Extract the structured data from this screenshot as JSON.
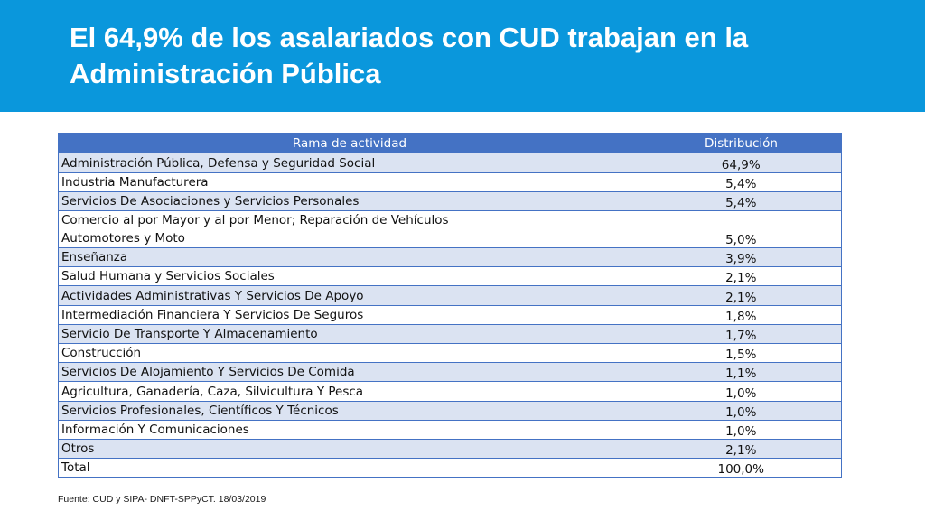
{
  "slide": {
    "title": "El 64,9% de los asalariados con CUD trabajan en la Administración Pública",
    "source": "Fuente: CUD y SIPA- DNFT-SPPyCT. 18/03/2019"
  },
  "table": {
    "headers": [
      "Rama de actividad",
      "Distribución"
    ],
    "rows": [
      {
        "rama": "Administración Pública, Defensa y Seguridad Social",
        "dist": "64,9%"
      },
      {
        "rama": "Industria Manufacturera",
        "dist": "5,4%"
      },
      {
        "rama": " Servicios De Asociaciones y Servicios Personales",
        "dist": "5,4%"
      },
      {
        "rama": "Comercio al por Mayor y al por Menor; Reparación de Vehículos",
        "rama2": "Automotores y Moto",
        "dist": "5,0%"
      },
      {
        "rama": "Enseñanza",
        "dist": "3,9%"
      },
      {
        "rama": "Salud Humana y Servicios Sociales",
        "dist": "2,1%"
      },
      {
        "rama": "Actividades Administrativas Y Servicios De Apoyo",
        "dist": "2,1%"
      },
      {
        "rama": "Intermediación Financiera Y Servicios De Seguros",
        "dist": "1,8%"
      },
      {
        "rama": "Servicio De Transporte Y Almacenamiento",
        "dist": "1,7%"
      },
      {
        "rama": "Construcción",
        "dist": "1,5%"
      },
      {
        "rama": "Servicios De Alojamiento Y Servicios De Comida",
        "dist": "1,1%"
      },
      {
        "rama": "Agricultura, Ganadería, Caza, Silvicultura Y Pesca",
        "dist": "1,0%"
      },
      {
        "rama": "Servicios Profesionales, Científicos Y Técnicos",
        "dist": "1,0%"
      },
      {
        "rama": "Información Y Comunicaciones",
        "dist": "1,0%"
      },
      {
        "rama": "Otros",
        "dist": "2,1%"
      },
      {
        "rama": "Total",
        "dist": "100,0%"
      }
    ]
  },
  "colors": {
    "header_band": "#0a97dc",
    "table_header": "#4472c4",
    "row_alt": "#dbe3f2"
  }
}
